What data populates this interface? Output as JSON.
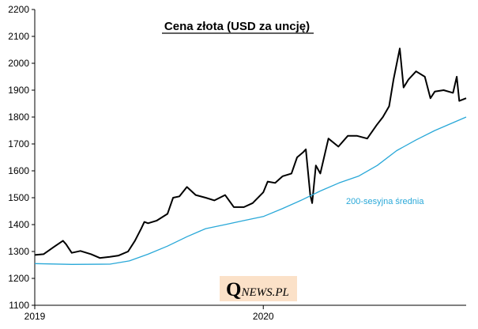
{
  "chart_data": {
    "type": "line",
    "title": "Cena złota (USD za uncję)",
    "xlabel": "",
    "ylabel": "",
    "ylim": [
      1100,
      2200
    ],
    "yticks": [
      1100,
      1200,
      1300,
      1400,
      1500,
      1600,
      1700,
      1800,
      1900,
      2000,
      2100,
      2200
    ],
    "xticks": [
      {
        "label": "2019",
        "date": "2019-01-01"
      },
      {
        "label": "2020",
        "date": "2020-01-01"
      }
    ],
    "x_range": [
      "2019-01-01",
      "2020-11-20"
    ],
    "grid": false,
    "colors": {
      "price": "#000000",
      "average": "#29a8d8",
      "axis": "#000000",
      "logo_bg": "#fbe1c8",
      "logo_text": "#000000"
    },
    "series": [
      {
        "key": "price",
        "x": [
          "2019-01-01",
          "2019-01-15",
          "2019-02-01",
          "2019-02-15",
          "2019-02-20",
          "2019-03-01",
          "2019-03-15",
          "2019-04-01",
          "2019-04-15",
          "2019-05-01",
          "2019-05-15",
          "2019-05-30",
          "2019-06-10",
          "2019-06-20",
          "2019-06-25",
          "2019-07-01",
          "2019-07-15",
          "2019-08-01",
          "2019-08-10",
          "2019-08-20",
          "2019-09-01",
          "2019-09-15",
          "2019-10-01",
          "2019-10-15",
          "2019-11-01",
          "2019-11-15",
          "2019-12-01",
          "2019-12-15",
          "2020-01-01",
          "2020-01-08",
          "2020-01-20",
          "2020-02-01",
          "2020-02-15",
          "2020-02-24",
          "2020-03-05",
          "2020-03-09",
          "2020-03-16",
          "2020-03-19",
          "2020-03-25",
          "2020-04-01",
          "2020-04-14",
          "2020-04-30",
          "2020-05-15",
          "2020-05-30",
          "2020-06-15",
          "2020-06-30",
          "2020-07-10",
          "2020-07-20",
          "2020-07-27",
          "2020-08-06",
          "2020-08-12",
          "2020-08-20",
          "2020-09-01",
          "2020-09-15",
          "2020-09-24",
          "2020-10-01",
          "2020-10-15",
          "2020-10-30",
          "2020-11-05",
          "2020-11-09",
          "2020-11-20"
        ],
        "values": [
          1287,
          1290,
          1318,
          1340,
          1327,
          1295,
          1302,
          1290,
          1276,
          1280,
          1285,
          1300,
          1340,
          1385,
          1410,
          1405,
          1415,
          1440,
          1500,
          1505,
          1540,
          1510,
          1500,
          1490,
          1510,
          1465,
          1465,
          1480,
          1520,
          1560,
          1555,
          1580,
          1590,
          1650,
          1670,
          1680,
          1510,
          1480,
          1620,
          1590,
          1720,
          1690,
          1730,
          1730,
          1720,
          1770,
          1800,
          1840,
          1940,
          2055,
          1910,
          1940,
          1970,
          1950,
          1870,
          1895,
          1900,
          1890,
          1950,
          1860,
          1870
        ]
      },
      {
        "key": "average",
        "name": "200-sesyjna średnia",
        "x": [
          "2019-01-01",
          "2019-03-01",
          "2019-05-01",
          "2019-06-01",
          "2019-07-01",
          "2019-08-01",
          "2019-09-01",
          "2019-10-01",
          "2019-11-01",
          "2019-12-01",
          "2020-01-01",
          "2020-02-01",
          "2020-03-01",
          "2020-04-01",
          "2020-05-01",
          "2020-06-01",
          "2020-07-01",
          "2020-08-01",
          "2020-09-01",
          "2020-10-01",
          "2020-11-20"
        ],
        "values": [
          1255,
          1252,
          1253,
          1265,
          1290,
          1320,
          1355,
          1385,
          1400,
          1415,
          1430,
          1460,
          1490,
          1525,
          1555,
          1580,
          1620,
          1675,
          1715,
          1750,
          1800
        ]
      }
    ]
  },
  "logo": {
    "q": "Q",
    "text": "NEWS.PL"
  }
}
